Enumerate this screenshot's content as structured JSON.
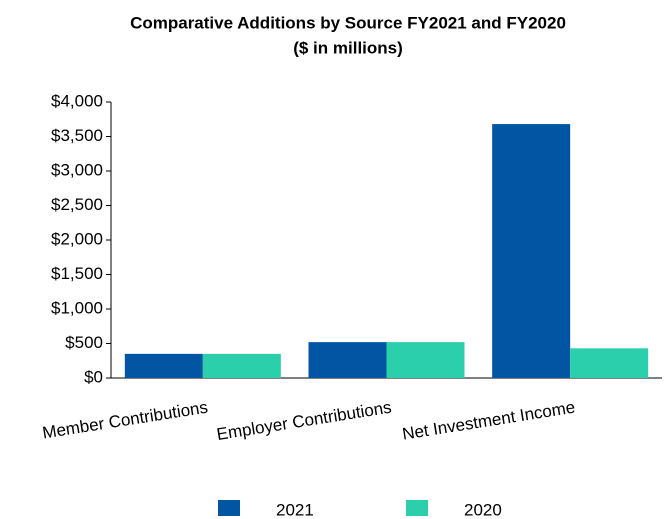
{
  "chart_data": {
    "type": "bar",
    "title": "Comparative Additions by Source FY2021 and FY2020",
    "subtitle": "($ in millions)",
    "categories": [
      "Member Contributions",
      "Employer Contributions",
      "Net Investment Income"
    ],
    "series": [
      {
        "name": "2021",
        "color": "#0255a3",
        "values": [
          350,
          520,
          3680
        ]
      },
      {
        "name": "2020",
        "color": "#2ccfac",
        "values": [
          350,
          520,
          430
        ]
      }
    ],
    "ylim": [
      0,
      4000
    ],
    "yticks": [
      {
        "value": 0,
        "label": "$0"
      },
      {
        "value": 500,
        "label": "$500"
      },
      {
        "value": 1000,
        "label": "$1,000"
      },
      {
        "value": 1500,
        "label": "$1,500"
      },
      {
        "value": 2000,
        "label": "$2,000"
      },
      {
        "value": 2500,
        "label": "$2,500"
      },
      {
        "value": 3000,
        "label": "$3,000"
      },
      {
        "value": 3500,
        "label": "$3,500"
      },
      {
        "value": 4000,
        "label": "$4,000"
      }
    ],
    "grid": false
  }
}
